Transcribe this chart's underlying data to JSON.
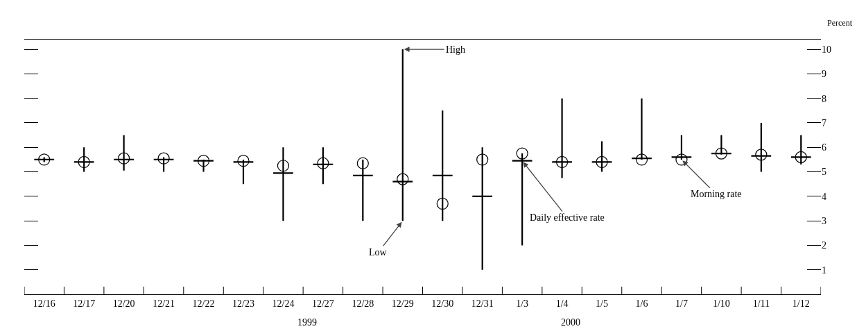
{
  "chart_data": {
    "type": "box",
    "ylabel": "Percent",
    "categories": [
      "12/16",
      "12/17",
      "12/20",
      "12/21",
      "12/22",
      "12/23",
      "12/24",
      "12/27",
      "12/28",
      "12/29",
      "12/30",
      "12/31",
      "1/3",
      "1/4",
      "1/5",
      "1/6",
      "1/7",
      "1/10",
      "1/11",
      "1/12"
    ],
    "series": [
      {
        "color": "#000000",
        "boxes": [
          {
            "low": 5.4,
            "q1": 5.5,
            "median": 5.5,
            "q3": 5.5,
            "high": 5.6
          },
          {
            "low": 5.0,
            "q1": 5.4,
            "median": 5.4,
            "q3": 5.4,
            "high": 6.0
          },
          {
            "low": 5.05,
            "q1": 5.5,
            "median": 5.5,
            "q3": 5.5,
            "high": 6.5
          },
          {
            "low": 5.0,
            "q1": 5.5,
            "median": 5.5,
            "q3": 5.5,
            "high": 5.6
          },
          {
            "low": 5.0,
            "q1": 5.45,
            "median": 5.45,
            "q3": 5.45,
            "high": 5.5
          },
          {
            "low": 4.5,
            "q1": 5.4,
            "median": 5.4,
            "q3": 5.4,
            "high": 5.5
          },
          {
            "low": 3.0,
            "q1": 4.95,
            "median": 4.95,
            "q3": 4.95,
            "high": 6.0
          },
          {
            "low": 4.5,
            "q1": 5.3,
            "median": 5.3,
            "q3": 5.3,
            "high": 6.0
          },
          {
            "low": 3.0,
            "q1": 4.85,
            "median": 4.85,
            "q3": 4.85,
            "high": 5.5
          },
          {
            "low": 3.0,
            "q1": 4.6,
            "median": 4.6,
            "q3": 4.6,
            "high": 10.0
          },
          {
            "low": 3.0,
            "q1": 4.85,
            "median": 4.85,
            "q3": 4.85,
            "high": 7.5
          },
          {
            "low": 1.0,
            "q1": 4.0,
            "median": 4.0,
            "q3": 4.0,
            "high": 6.0
          },
          {
            "low": 2.0,
            "q1": 5.45,
            "median": 5.45,
            "q3": 5.45,
            "high": 5.75
          },
          {
            "low": 4.75,
            "q1": 5.4,
            "median": 5.4,
            "q3": 5.4,
            "high": 8.0
          },
          {
            "low": 5.0,
            "q1": 5.4,
            "median": 5.4,
            "q3": 5.4,
            "high": 6.25
          },
          {
            "low": 5.5,
            "q1": 5.55,
            "median": 5.55,
            "q3": 5.55,
            "high": 8.0
          },
          {
            "low": 5.5,
            "q1": 5.6,
            "median": 5.6,
            "q3": 5.6,
            "high": 6.5
          },
          {
            "low": 5.7,
            "q1": 5.75,
            "median": 5.75,
            "q3": 5.75,
            "high": 6.5
          },
          {
            "low": 5.0,
            "q1": 5.65,
            "median": 5.65,
            "q3": 5.65,
            "high": 7.0
          },
          {
            "low": 5.3,
            "q1": 5.6,
            "median": 5.6,
            "q3": 5.6,
            "high": 6.5
          }
        ]
      },
      {
        "type": "scatter",
        "color": "#000000",
        "marker": "circle",
        "x": [
          "12/16",
          "12/17",
          "12/20",
          "12/21",
          "12/22",
          "12/23",
          "12/24",
          "12/27",
          "12/28",
          "12/29",
          "12/30",
          "12/31",
          "1/3",
          "1/4",
          "1/5",
          "1/6",
          "1/7",
          "1/10",
          "1/11",
          "1/12"
        ],
        "values": [
          5.5,
          5.4,
          5.55,
          5.55,
          5.45,
          5.45,
          5.25,
          5.35,
          5.35,
          4.7,
          3.7,
          5.5,
          5.75,
          5.4,
          5.4,
          5.5,
          5.5,
          5.75,
          5.7,
          5.6
        ]
      }
    ],
    "ylim": [
      0,
      10.4
    ],
    "yticks": [
      1,
      2,
      3,
      4,
      5,
      6,
      7,
      8,
      9,
      10
    ],
    "grid": false,
    "annotations": [
      {
        "text": "High",
        "x": "12/29",
        "y": 10
      },
      {
        "text": "Low",
        "x": "12/29",
        "y": 3
      },
      {
        "text": "Daily effective rate",
        "x": "1/3",
        "y": 5.45
      },
      {
        "text": "Morning rate",
        "x": "1/7",
        "y": 5.5
      },
      "1999",
      "2000"
    ]
  }
}
